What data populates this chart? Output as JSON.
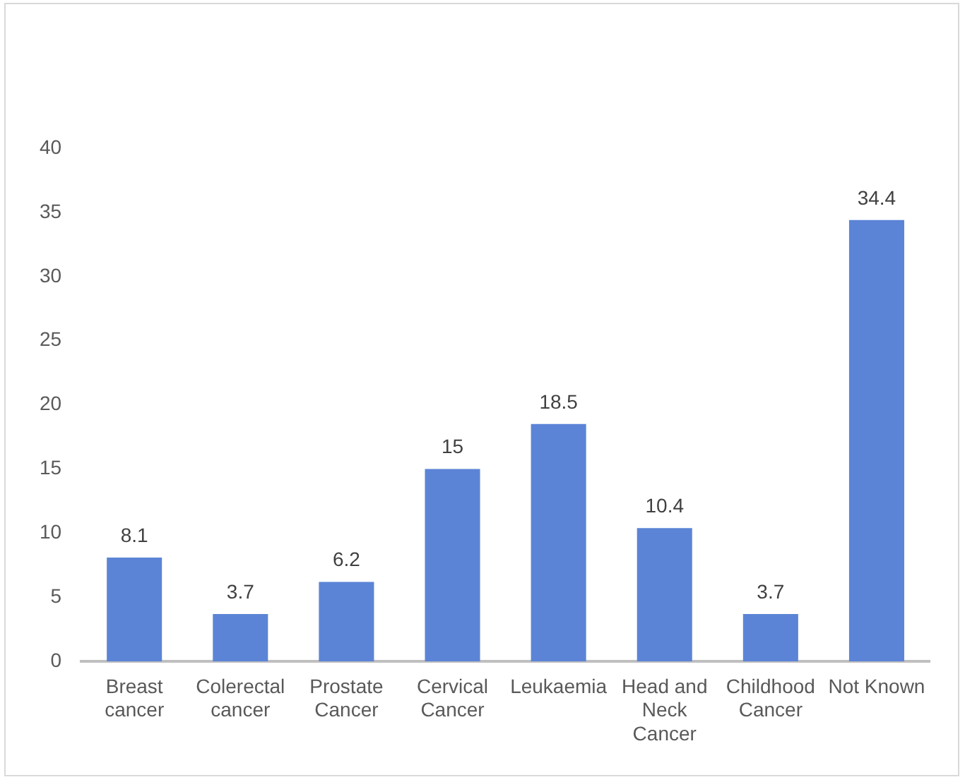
{
  "chart_data": {
    "type": "bar",
    "categories": [
      "Breast cancer",
      "Colerectal cancer",
      "Prostate Cancer",
      "Cervical Cancer",
      "Leukaemia",
      "Head and Neck Cancer",
      "Childhood Cancer",
      "Not Known"
    ],
    "values": [
      8.1,
      3.7,
      6.2,
      15,
      18.5,
      10.4,
      3.7,
      34.4
    ],
    "color": "#5b84d6",
    "ylim": [
      0,
      40
    ],
    "yticks": [
      0,
      5,
      10,
      15,
      20,
      25,
      30,
      35,
      40
    ],
    "grid": false,
    "legend": false,
    "data_labels": true
  }
}
